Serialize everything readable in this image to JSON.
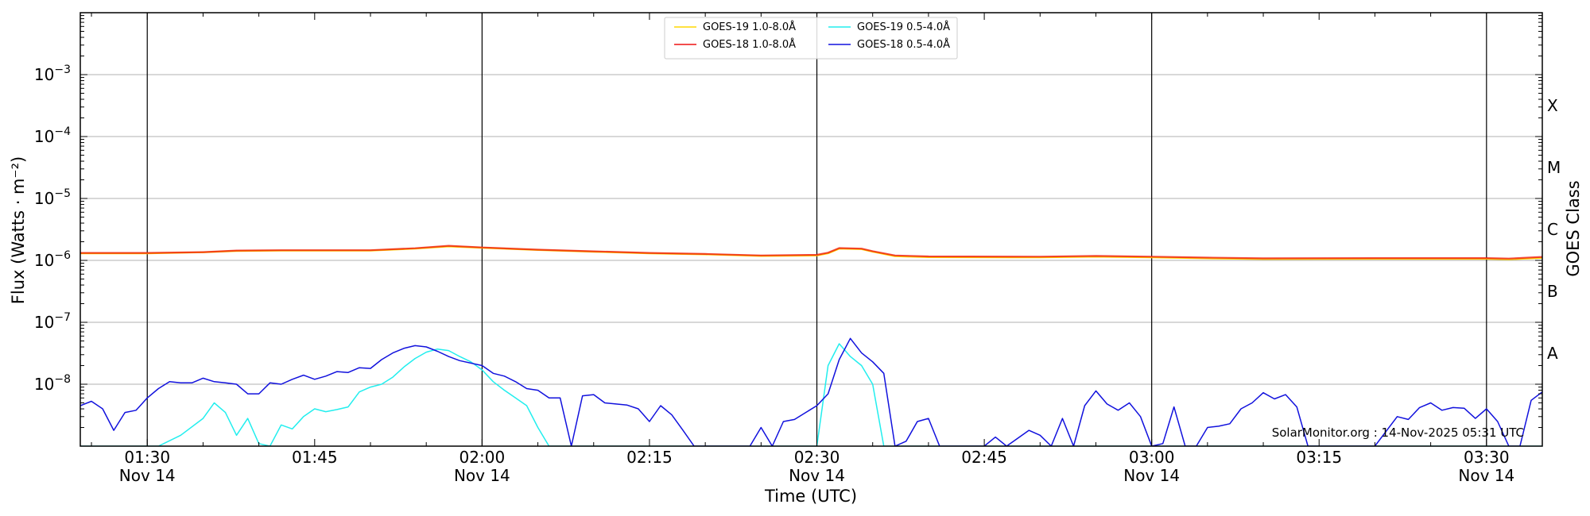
{
  "chart_data": {
    "type": "line",
    "title": "",
    "xlabel": "Time (UTC)",
    "ylabel": "Flux (Watts · m⁻²)",
    "right_label": "GOES Class",
    "y_scale": "log",
    "ylim": [
      1e-09,
      0.01
    ],
    "xlim": [
      "2025-11-14 01:24",
      "2025-11-14 03:35"
    ],
    "y_ticks": [
      {
        "value": 0.001,
        "label_base": "10",
        "label_exp": "−3"
      },
      {
        "value": 0.0001,
        "label_base": "10",
        "label_exp": "−4"
      },
      {
        "value": 1e-05,
        "label_base": "10",
        "label_exp": "−5"
      },
      {
        "value": 1e-06,
        "label_base": "10",
        "label_exp": "−6"
      },
      {
        "value": 1e-07,
        "label_base": "10",
        "label_exp": "−7"
      },
      {
        "value": 1e-08,
        "label_base": "10",
        "label_exp": "−8"
      }
    ],
    "x_ticks": [
      {
        "time": "01:30",
        "line1": "01:30",
        "line2": "Nov 14",
        "vline": true
      },
      {
        "time": "01:45",
        "line1": "01:45",
        "line2": "",
        "vline": false
      },
      {
        "time": "02:00",
        "line1": "02:00",
        "line2": "Nov 14",
        "vline": true
      },
      {
        "time": "02:15",
        "line1": "02:15",
        "line2": "",
        "vline": false
      },
      {
        "time": "02:30",
        "line1": "02:30",
        "line2": "Nov 14",
        "vline": true
      },
      {
        "time": "02:45",
        "line1": "02:45",
        "line2": "",
        "vline": false
      },
      {
        "time": "03:00",
        "line1": "03:00",
        "line2": "Nov 14",
        "vline": true
      },
      {
        "time": "03:15",
        "line1": "03:15",
        "line2": "",
        "vline": false
      },
      {
        "time": "03:30",
        "line1": "03:30",
        "line2": "Nov 14",
        "vline": true
      }
    ],
    "goes_classes": [
      {
        "label": "X",
        "lower": 0.0001,
        "upper": 0.001
      },
      {
        "label": "M",
        "lower": 1e-05,
        "upper": 0.0001
      },
      {
        "label": "C",
        "lower": 1e-06,
        "upper": 1e-05
      },
      {
        "label": "B",
        "lower": 1e-07,
        "upper": 1e-06
      },
      {
        "label": "A",
        "lower": 1e-08,
        "upper": 1e-07
      }
    ],
    "grid": true,
    "legend_position": "top-center",
    "credit": "SolarMonitor.org : 14-Nov-2025 05:31 UTC",
    "series": [
      {
        "name": "GOES-19 1.0-8.0Å",
        "color": "#ffd700",
        "points": [
          [
            "01:24",
            1.3e-06
          ],
          [
            "01:30",
            1.3e-06
          ],
          [
            "01:35",
            1.35e-06
          ],
          [
            "01:38",
            1.42e-06
          ],
          [
            "01:42",
            1.44e-06
          ],
          [
            "01:50",
            1.44e-06
          ],
          [
            "01:54",
            1.55e-06
          ],
          [
            "01:57",
            1.68e-06
          ],
          [
            "02:00",
            1.6e-06
          ],
          [
            "02:05",
            1.47e-06
          ],
          [
            "02:10",
            1.38e-06
          ],
          [
            "02:15",
            1.3e-06
          ],
          [
            "02:20",
            1.25e-06
          ],
          [
            "02:25",
            1.18e-06
          ],
          [
            "02:30",
            1.2e-06
          ],
          [
            "02:31",
            1.3e-06
          ],
          [
            "02:32",
            1.55e-06
          ],
          [
            "02:34",
            1.52e-06
          ],
          [
            "02:35",
            1.38e-06
          ],
          [
            "02:37",
            1.17e-06
          ],
          [
            "02:40",
            1.13e-06
          ],
          [
            "02:50",
            1.12e-06
          ],
          [
            "02:55",
            1.15e-06
          ],
          [
            "03:00",
            1.12e-06
          ],
          [
            "03:05",
            1.08e-06
          ],
          [
            "03:10",
            1.05e-06
          ],
          [
            "03:20",
            1.06e-06
          ],
          [
            "03:30",
            1.06e-06
          ],
          [
            "03:32",
            1.04e-06
          ],
          [
            "03:35",
            1.1e-06
          ]
        ]
      },
      {
        "name": "GOES-18 1.0-8.0Å",
        "color": "#ee1111",
        "points": [
          [
            "01:24",
            1.32e-06
          ],
          [
            "01:30",
            1.32e-06
          ],
          [
            "01:35",
            1.36e-06
          ],
          [
            "01:38",
            1.44e-06
          ],
          [
            "01:42",
            1.46e-06
          ],
          [
            "01:50",
            1.46e-06
          ],
          [
            "01:54",
            1.57e-06
          ],
          [
            "01:57",
            1.72e-06
          ],
          [
            "02:00",
            1.62e-06
          ],
          [
            "02:05",
            1.49e-06
          ],
          [
            "02:10",
            1.4e-06
          ],
          [
            "02:15",
            1.32e-06
          ],
          [
            "02:20",
            1.27e-06
          ],
          [
            "02:25",
            1.2e-06
          ],
          [
            "02:30",
            1.23e-06
          ],
          [
            "02:31",
            1.33e-06
          ],
          [
            "02:32",
            1.58e-06
          ],
          [
            "02:34",
            1.55e-06
          ],
          [
            "02:35",
            1.41e-06
          ],
          [
            "02:37",
            1.2e-06
          ],
          [
            "02:40",
            1.16e-06
          ],
          [
            "02:50",
            1.15e-06
          ],
          [
            "02:55",
            1.18e-06
          ],
          [
            "03:00",
            1.15e-06
          ],
          [
            "03:05",
            1.11e-06
          ],
          [
            "03:10",
            1.08e-06
          ],
          [
            "03:20",
            1.09e-06
          ],
          [
            "03:30",
            1.09e-06
          ],
          [
            "03:32",
            1.07e-06
          ],
          [
            "03:35",
            1.14e-06
          ]
        ]
      },
      {
        "name": "GOES-19 0.5-4.0Å",
        "color": "#22eeee",
        "points": [
          [
            "01:24",
            1e-09
          ],
          [
            "01:28",
            1e-09
          ],
          [
            "01:31",
            1e-09
          ],
          [
            "01:33",
            1.5e-09
          ],
          [
            "01:35",
            2.8e-09
          ],
          [
            "01:36",
            5e-09
          ],
          [
            "01:37",
            3.5e-09
          ],
          [
            "01:38",
            1.5e-09
          ],
          [
            "01:39",
            2.8e-09
          ],
          [
            "01:40",
            1.1e-09
          ],
          [
            "01:41",
            1e-09
          ],
          [
            "01:42",
            2.2e-09
          ],
          [
            "01:43",
            1.9e-09
          ],
          [
            "01:44",
            3e-09
          ],
          [
            "01:45",
            4e-09
          ],
          [
            "01:46",
            3.6e-09
          ],
          [
            "01:47",
            3.9e-09
          ],
          [
            "01:48",
            4.3e-09
          ],
          [
            "01:49",
            7.5e-09
          ],
          [
            "01:50",
            9e-09
          ],
          [
            "01:51",
            1e-08
          ],
          [
            "01:52",
            1.3e-08
          ],
          [
            "01:53",
            1.9e-08
          ],
          [
            "01:54",
            2.6e-08
          ],
          [
            "01:55",
            3.3e-08
          ],
          [
            "01:56",
            3.7e-08
          ],
          [
            "01:57",
            3.5e-08
          ],
          [
            "01:58",
            2.8e-08
          ],
          [
            "01:59",
            2.3e-08
          ],
          [
            "02:00",
            1.7e-08
          ],
          [
            "02:01",
            1.1e-08
          ],
          [
            "02:02",
            8e-09
          ],
          [
            "02:03",
            6e-09
          ],
          [
            "02:04",
            4.5e-09
          ],
          [
            "02:05",
            2e-09
          ],
          [
            "02:06",
            1e-09
          ],
          [
            "02:10",
            1e-09
          ],
          [
            "02:20",
            1e-09
          ],
          [
            "02:30",
            1e-09
          ],
          [
            "02:31",
            2e-08
          ],
          [
            "02:32",
            4.5e-08
          ],
          [
            "02:33",
            2.8e-08
          ],
          [
            "02:34",
            2e-08
          ],
          [
            "02:35",
            1e-08
          ],
          [
            "02:36",
            1e-09
          ],
          [
            "02:45",
            1e-09
          ],
          [
            "03:00",
            1e-09
          ],
          [
            "03:15",
            1e-09
          ],
          [
            "03:35",
            1e-09
          ]
        ]
      },
      {
        "name": "GOES-18 0.5-4.0Å",
        "color": "#1111dd",
        "points": [
          [
            "01:24",
            4.5e-09
          ],
          [
            "01:25",
            5.3e-09
          ],
          [
            "01:26",
            4e-09
          ],
          [
            "01:27",
            1.8e-09
          ],
          [
            "01:28",
            3.5e-09
          ],
          [
            "01:29",
            3.8e-09
          ],
          [
            "01:30",
            6e-09
          ],
          [
            "01:31",
            8.5e-09
          ],
          [
            "01:32",
            1.1e-08
          ],
          [
            "01:33",
            1.05e-08
          ],
          [
            "01:34",
            1.05e-08
          ],
          [
            "01:35",
            1.25e-08
          ],
          [
            "01:36",
            1.1e-08
          ],
          [
            "01:37",
            1.05e-08
          ],
          [
            "01:38",
            1e-08
          ],
          [
            "01:39",
            7e-09
          ],
          [
            "01:40",
            7e-09
          ],
          [
            "01:41",
            1.05e-08
          ],
          [
            "01:42",
            1e-08
          ],
          [
            "01:43",
            1.2e-08
          ],
          [
            "01:44",
            1.4e-08
          ],
          [
            "01:45",
            1.2e-08
          ],
          [
            "01:46",
            1.35e-08
          ],
          [
            "01:47",
            1.6e-08
          ],
          [
            "01:48",
            1.55e-08
          ],
          [
            "01:49",
            1.85e-08
          ],
          [
            "01:50",
            1.8e-08
          ],
          [
            "01:51",
            2.5e-08
          ],
          [
            "01:52",
            3.2e-08
          ],
          [
            "01:53",
            3.8e-08
          ],
          [
            "01:54",
            4.2e-08
          ],
          [
            "01:55",
            4e-08
          ],
          [
            "01:56",
            3.4e-08
          ],
          [
            "01:57",
            2.8e-08
          ],
          [
            "01:58",
            2.4e-08
          ],
          [
            "02:00",
            2e-08
          ],
          [
            "02:01",
            1.5e-08
          ],
          [
            "02:02",
            1.35e-08
          ],
          [
            "02:03",
            1.1e-08
          ],
          [
            "02:04",
            8.5e-09
          ],
          [
            "02:05",
            8e-09
          ],
          [
            "02:06",
            6e-09
          ],
          [
            "02:07",
            6e-09
          ],
          [
            "02:08",
            1e-09
          ],
          [
            "02:09",
            6.5e-09
          ],
          [
            "02:10",
            6.8e-09
          ],
          [
            "02:11",
            5e-09
          ],
          [
            "02:12",
            4.8e-09
          ],
          [
            "02:13",
            4.6e-09
          ],
          [
            "02:14",
            4e-09
          ],
          [
            "02:15",
            2.5e-09
          ],
          [
            "02:16",
            4.5e-09
          ],
          [
            "02:17",
            3.2e-09
          ],
          [
            "02:18",
            1.8e-09
          ],
          [
            "02:19",
            1e-09
          ],
          [
            "02:22",
            1e-09
          ],
          [
            "02:24",
            1e-09
          ],
          [
            "02:25",
            2e-09
          ],
          [
            "02:26",
            1e-09
          ],
          [
            "02:27",
            2.5e-09
          ],
          [
            "02:28",
            2.7e-09
          ],
          [
            "02:29",
            3.5e-09
          ],
          [
            "02:30",
            4.5e-09
          ],
          [
            "02:31",
            7e-09
          ],
          [
            "02:32",
            2.5e-08
          ],
          [
            "02:33",
            5.5e-08
          ],
          [
            "02:34",
            3.2e-08
          ],
          [
            "02:35",
            2.3e-08
          ],
          [
            "02:36",
            1.5e-08
          ],
          [
            "02:37",
            1e-09
          ],
          [
            "02:38",
            1.2e-09
          ],
          [
            "02:39",
            2.5e-09
          ],
          [
            "02:40",
            2.8e-09
          ],
          [
            "02:41",
            1e-09
          ],
          [
            "02:45",
            1e-09
          ],
          [
            "02:46",
            1.4e-09
          ],
          [
            "02:47",
            1e-09
          ],
          [
            "02:49",
            1.8e-09
          ],
          [
            "02:50",
            1.5e-09
          ],
          [
            "02:51",
            1e-09
          ],
          [
            "02:52",
            2.8e-09
          ],
          [
            "02:53",
            1e-09
          ],
          [
            "02:54",
            4.5e-09
          ],
          [
            "02:55",
            7.8e-09
          ],
          [
            "02:56",
            4.8e-09
          ],
          [
            "02:57",
            3.8e-09
          ],
          [
            "02:58",
            5e-09
          ],
          [
            "02:59",
            3e-09
          ],
          [
            "03:00",
            1e-09
          ],
          [
            "03:01",
            1.1e-09
          ],
          [
            "03:02",
            4.3e-09
          ],
          [
            "03:03",
            1e-09
          ],
          [
            "03:04",
            1e-09
          ],
          [
            "03:05",
            2e-09
          ],
          [
            "03:06",
            2.1e-09
          ],
          [
            "03:07",
            2.3e-09
          ],
          [
            "03:08",
            4e-09
          ],
          [
            "03:09",
            5e-09
          ],
          [
            "03:10",
            7.3e-09
          ],
          [
            "03:11",
            5.8e-09
          ],
          [
            "03:12",
            6.8e-09
          ],
          [
            "03:13",
            4.3e-09
          ],
          [
            "03:14",
            1e-09
          ],
          [
            "03:20",
            1e-09
          ],
          [
            "03:22",
            3e-09
          ],
          [
            "03:23",
            2.7e-09
          ],
          [
            "03:24",
            4.2e-09
          ],
          [
            "03:25",
            5e-09
          ],
          [
            "03:26",
            3.8e-09
          ],
          [
            "03:27",
            4.2e-09
          ],
          [
            "03:28",
            4.1e-09
          ],
          [
            "03:29",
            2.8e-09
          ],
          [
            "03:30",
            4e-09
          ],
          [
            "03:31",
            2.5e-09
          ],
          [
            "03:32",
            1e-09
          ],
          [
            "03:33",
            1e-09
          ],
          [
            "03:34",
            5.5e-09
          ],
          [
            "03:35",
            7.5e-09
          ]
        ]
      }
    ]
  }
}
